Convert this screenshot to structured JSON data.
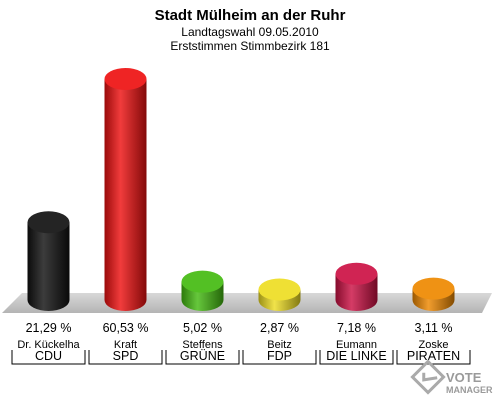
{
  "header": {
    "title": "Stadt Mülheim an der Ruhr",
    "subtitle1": "Landtagswahl 09.05.2010",
    "subtitle2": "Erststimmen Stimmbezirk 181"
  },
  "chart_data": {
    "type": "bar",
    "title": "Stadt Mülheim an der Ruhr",
    "subtitle": [
      "Landtagswahl 09.05.2010",
      "Erststimmen Stimmbezirk 181"
    ],
    "categories": [
      "CDU",
      "SPD",
      "GRÜNE",
      "FDP",
      "DIE LINKE",
      "PIRATEN"
    ],
    "candidates": [
      "Dr. Kückelha",
      "Kraft",
      "Steffens",
      "Beitz",
      "Eumann",
      "Zoske"
    ],
    "values": [
      21.29,
      60.53,
      5.02,
      2.87,
      7.18,
      3.11
    ],
    "value_labels": [
      "21,29 %",
      "60,53 %",
      "5,02 %",
      "2,87 %",
      "7,18 %",
      "3,11 %"
    ],
    "colors": [
      "#111111",
      "#ee1111",
      "#44bb11",
      "#eedd22",
      "#cc1144",
      "#ee8800"
    ],
    "unit": "%",
    "ylim": [
      0,
      63
    ],
    "grid": false,
    "legend": "none"
  },
  "watermark": {
    "line1": "VOTE",
    "line2": "MANAGER"
  }
}
